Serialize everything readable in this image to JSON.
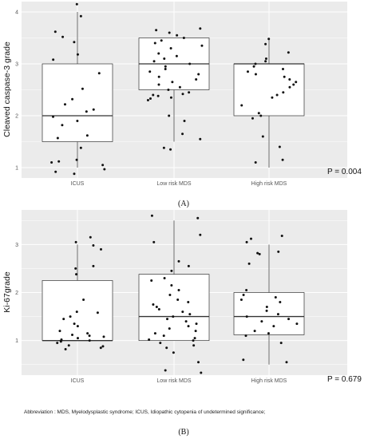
{
  "chart_data": [
    {
      "type": "box",
      "panel_label": "(A)",
      "ylabel": "Cleaved caspase-3 grade",
      "categories": [
        "ICUS",
        "Low risk MDS",
        "High risk MDS"
      ],
      "yticks": [
        "1",
        "2",
        "3",
        "4"
      ],
      "ylim": [
        0.8,
        4.2
      ],
      "p_value": "P = 0.004",
      "boxes": [
        {
          "q1": 1.5,
          "median": 2.0,
          "q3": 3.0,
          "whisker_low": 1.0,
          "whisker_high": 4.0
        },
        {
          "q1": 2.5,
          "median": 3.0,
          "q3": 3.5,
          "whisker_low": 1.5,
          "whisker_high": 3.5
        },
        {
          "q1": 2.0,
          "median": 3.0,
          "q3": 3.0,
          "whisker_low": 1.0,
          "whisker_high": 3.5
        }
      ],
      "points": [
        [
          4.15,
          3.92,
          3.62,
          3.52,
          3.42,
          3.18,
          3.08,
          2.82,
          2.52,
          2.32,
          2.22,
          2.12,
          2.08,
          1.98,
          1.9,
          1.82,
          1.62,
          1.57,
          1.38,
          1.15,
          1.12,
          1.1,
          1.05,
          0.97,
          0.92,
          0.88
        ],
        [
          3.68,
          3.65,
          3.6,
          3.55,
          3.5,
          3.45,
          3.4,
          3.35,
          3.3,
          3.2,
          3.15,
          3.1,
          3.05,
          3.0,
          2.95,
          2.9,
          2.85,
          2.8,
          2.75,
          2.7,
          2.65,
          2.6,
          2.55,
          2.5,
          2.45,
          2.42,
          2.4,
          2.38,
          2.35,
          2.33,
          2.3,
          2.0,
          1.9,
          1.65,
          1.55,
          1.38,
          1.35
        ],
        [
          3.48,
          3.38,
          3.22,
          3.1,
          3.05,
          3.0,
          2.95,
          2.9,
          2.85,
          2.8,
          2.75,
          2.7,
          2.65,
          2.6,
          2.55,
          2.45,
          2.4,
          2.35,
          2.2,
          2.05,
          2.0,
          1.95,
          1.6,
          1.4,
          1.15,
          1.1
        ]
      ]
    },
    {
      "type": "box",
      "panel_label": "(B)",
      "ylabel": "Ki-67grade",
      "categories": [
        "ICUS",
        "Low risk MDS",
        "High risk MDS"
      ],
      "yticks": [
        "1",
        "2",
        "3"
      ],
      "ylim": [
        0.28,
        3.72
      ],
      "p_value": "P = 0.679",
      "boxes": [
        {
          "q1": 1.0,
          "median": 1.0,
          "q3": 2.25,
          "whisker_low": 1.0,
          "whisker_high": 3.0
        },
        {
          "q1": 1.0,
          "median": 1.5,
          "q3": 2.38,
          "whisker_low": 1.0,
          "whisker_high": 3.5
        },
        {
          "q1": 1.12,
          "median": 1.5,
          "q3": 2.0,
          "whisker_low": 0.5,
          "whisker_high": 3.0
        }
      ],
      "points": [
        [
          3.15,
          3.05,
          2.98,
          2.9,
          2.55,
          2.5,
          2.38,
          1.85,
          1.6,
          1.58,
          1.5,
          1.45,
          1.35,
          1.3,
          1.2,
          1.15,
          1.12,
          1.1,
          1.08,
          1.05,
          1.02,
          1.0,
          0.98,
          0.95,
          0.9,
          0.88,
          0.85,
          0.82
        ],
        [
          3.6,
          3.55,
          3.2,
          3.05,
          2.65,
          2.55,
          2.45,
          2.3,
          2.25,
          2.15,
          2.05,
          1.95,
          1.85,
          1.8,
          1.75,
          1.7,
          1.65,
          1.6,
          1.55,
          1.5,
          1.45,
          1.4,
          1.35,
          1.3,
          1.25,
          1.2,
          1.15,
          1.1,
          1.05,
          1.02,
          1.0,
          0.95,
          0.9,
          0.85,
          0.75,
          0.55,
          0.38,
          0.33
        ],
        [
          3.18,
          3.12,
          3.05,
          2.85,
          2.82,
          2.8,
          2.6,
          2.05,
          1.95,
          1.9,
          1.85,
          1.8,
          1.7,
          1.62,
          1.55,
          1.5,
          1.45,
          1.4,
          1.35,
          1.3,
          1.2,
          1.15,
          1.1,
          0.95,
          0.6,
          0.55
        ]
      ]
    }
  ],
  "footnote": "Abbreviation : MDS, Myelodysplastic syndrome; ICUS, Idiopathic cytopenia of undetermined significance;",
  "colors": {
    "panel_bg": "#ebebeb",
    "grid": "#ffffff",
    "box_fill": "#ffffff",
    "box_stroke": "#333333",
    "point": "#111111"
  }
}
